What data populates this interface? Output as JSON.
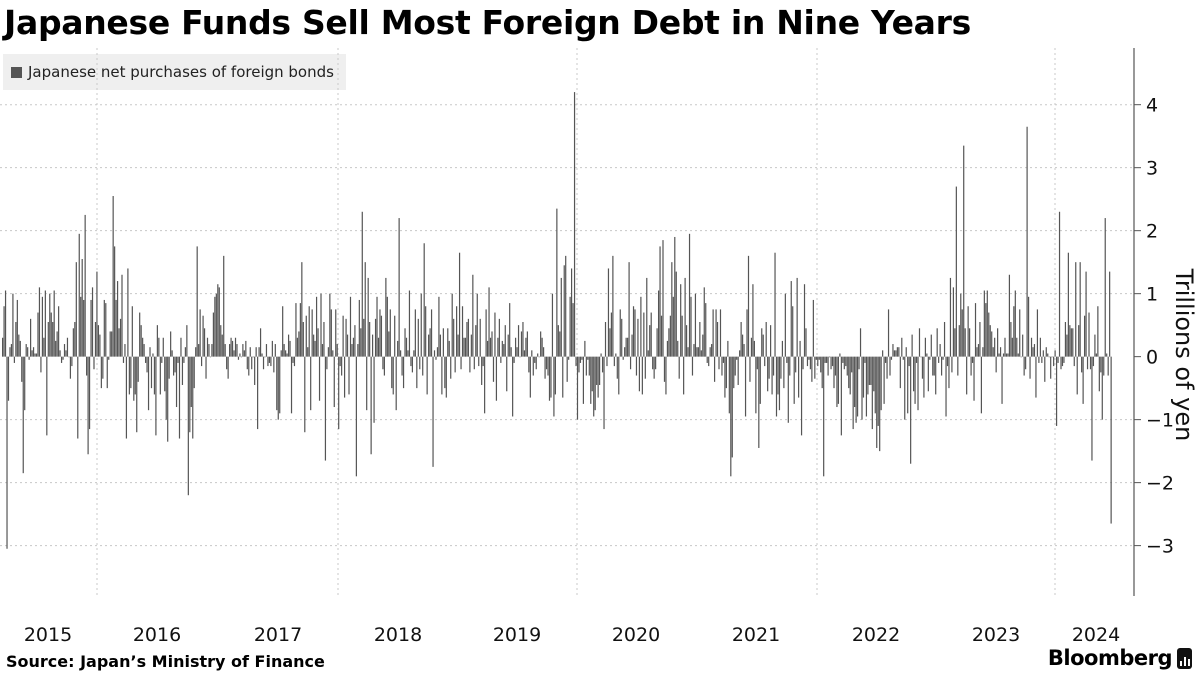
{
  "title": "Japanese Funds Sell Most Foreign Debt in Nine Years",
  "source": "Source: Japan’s Ministry of Finance",
  "brand": "Bloomberg",
  "colors": {
    "bar": "#555555",
    "grid": "#c8c8c8",
    "axis": "#555555",
    "legend_bg": "#efefef"
  },
  "chart_data": {
    "type": "bar",
    "frequency": "weekly",
    "grid": true,
    "legend_position": "top-left",
    "ylabel": "Trillions of yen",
    "ylim": [
      -3.8,
      4.9
    ],
    "y_ticks": [
      4,
      3,
      2,
      1,
      0,
      -1,
      -2,
      -3
    ],
    "x_year_labels": [
      "2015",
      "2016",
      "2017",
      "2018",
      "2019",
      "2020",
      "2021",
      "2022",
      "2023",
      "2024"
    ],
    "series": [
      {
        "name": "Japanese net purchases of foreign bonds",
        "values": [
          0.3,
          0.8,
          1.05,
          -3.05,
          -0.7,
          0.15,
          0.2,
          1.0,
          -0.1,
          0.55,
          0.9,
          0.35,
          0.25,
          -0.4,
          -1.85,
          -0.85,
          0.2,
          0.15,
          -0.05,
          0.6,
          0.1,
          0.15,
          0.05,
          0.05,
          0.7,
          1.1,
          -0.25,
          0.95,
          0.3,
          1.05,
          -1.25,
          0.55,
          1.0,
          0.7,
          0.55,
          1.05,
          0.25,
          0.4,
          0.8,
          0.1,
          -0.1,
          -0.05,
          0.2,
          0.1,
          0.3,
          0.0,
          -0.35,
          -0.15,
          0.45,
          0.55,
          1.5,
          -1.3,
          1.95,
          0.95,
          1.55,
          0.9,
          2.25,
          -0.3,
          -1.55,
          -1.15,
          0.9,
          1.1,
          -0.2,
          0.55,
          1.35,
          0.5,
          0.35,
          -0.5,
          -0.35,
          0.9,
          0.85,
          -0.5,
          -0.05,
          0.4,
          0.4,
          2.55,
          1.75,
          0.9,
          1.2,
          0.45,
          0.6,
          1.3,
          -0.1,
          0.2,
          -1.3,
          1.4,
          -0.6,
          -0.5,
          0.8,
          -0.7,
          -0.6,
          -1.2,
          -0.4,
          0.7,
          0.5,
          0.3,
          0.2,
          -0.1,
          -0.25,
          -0.85,
          0.15,
          -0.5,
          0.05,
          -0.6,
          -1.25,
          0.5,
          0.3,
          -0.6,
          -0.1,
          0.3,
          -0.55,
          -1.0,
          -1.35,
          -0.35,
          0.4,
          0.1,
          -0.3,
          -0.25,
          -0.8,
          -0.1,
          -1.3,
          0.3,
          -0.45,
          -0.1,
          0.15,
          0.5,
          -2.2,
          -1.2,
          -0.8,
          -1.3,
          -0.5,
          0.15,
          1.75,
          0.2,
          0.75,
          -0.15,
          0.65,
          0.45,
          -0.35,
          0.3,
          0.2,
          0.0,
          0.2,
          0.7,
          0.95,
          1.0,
          1.15,
          1.1,
          0.5,
          0.35,
          1.6,
          0.2,
          -0.2,
          -0.35,
          0.2,
          0.3,
          0.25,
          0.1,
          0.3,
          0.2,
          -0.05,
          0.05,
          0.0,
          0.2,
          0.1,
          0.25,
          -0.2,
          -0.3,
          0.15,
          -0.2,
          0.0,
          -0.45,
          0.15,
          -1.15,
          0.15,
          0.45,
          0.05,
          -0.2,
          0.0,
          0.2,
          -0.15,
          -0.1,
          -0.15,
          0.25,
          -0.25,
          0.2,
          -0.85,
          -1.0,
          -0.9,
          0.1,
          0.8,
          0.2,
          0.1,
          0.05,
          0.35,
          0.25,
          -0.9,
          -0.1,
          -0.15,
          0.85,
          0.3,
          0.4,
          0.85,
          1.5,
          0.55,
          -1.2,
          0.65,
          0.15,
          0.8,
          -0.85,
          0.75,
          0.35,
          0.25,
          0.95,
          0.45,
          -0.7,
          1.0,
          0.2,
          0.55,
          -1.65,
          -0.2,
          0.15,
          1.0,
          0.75,
          0.1,
          -0.8,
          0.75,
          0.2,
          -1.15,
          -0.15,
          -0.3,
          0.65,
          -0.65,
          0.6,
          0.35,
          -0.6,
          0.95,
          0.2,
          0.3,
          0.5,
          -1.9,
          0.2,
          0.9,
          0.45,
          2.3,
          0.6,
          1.5,
          -0.85,
          1.25,
          0.55,
          -1.55,
          0.35,
          -1.05,
          0.6,
          0.95,
          0.3,
          0.75,
          0.65,
          -0.2,
          -0.3,
          1.25,
          0.95,
          0.4,
          0.75,
          -0.5,
          -0.6,
          0.65,
          -0.85,
          0.25,
          2.2,
          0.1,
          -0.3,
          -0.5,
          0.45,
          0.3,
          0.1,
          1.05,
          -0.15,
          -0.25,
          0.1,
          0.75,
          -0.5,
          0.6,
          -0.2,
          1.0,
          -0.3,
          1.8,
          0.8,
          -0.6,
          0.35,
          0.45,
          0.75,
          -1.75,
          0.1,
          -0.05,
          0.15,
          0.95,
          0.35,
          -0.6,
          0.45,
          -0.5,
          -0.65,
          0.45,
          0.25,
          -0.35,
          1.0,
          0.6,
          -0.25,
          0.8,
          0.35,
          1.65,
          -0.2,
          0.8,
          0.3,
          0.3,
          0.55,
          0.6,
          -0.25,
          0.35,
          1.3,
          -0.2,
          0.5,
          1.0,
          -0.15,
          0.6,
          -0.45,
          -0.15,
          -0.9,
          0.75,
          0.25,
          1.1,
          0.3,
          0.4,
          -0.4,
          0.7,
          -0.7,
          0.3,
          0.6,
          -0.1,
          0.25,
          0.2,
          0.5,
          -0.55,
          0.35,
          0.85,
          0.15,
          -0.95,
          -0.1,
          0.3,
          0.15,
          0.5,
          0.0,
          0.4,
          0.55,
          0.1,
          0.3,
          0.4,
          -0.25,
          -0.65,
          0.1,
          -0.3,
          -0.1,
          -0.2,
          0.05,
          0.0,
          0.4,
          0.3,
          0.15,
          -0.35,
          -0.2,
          -0.3,
          -0.7,
          -0.65,
          1.0,
          -0.95,
          -0.6,
          2.35,
          0.5,
          0.4,
          1.25,
          -0.65,
          1.45,
          1.6,
          -0.4,
          -0.05,
          0.95,
          1.4,
          0.85,
          4.2,
          -0.15,
          -1.0,
          -0.25,
          -0.1,
          -0.05,
          -0.75,
          0.25,
          -0.3,
          -0.05,
          -0.3,
          -0.75,
          -0.55,
          -0.95,
          -0.85,
          -0.45,
          -0.65,
          -0.45,
          0.05,
          -0.25,
          -1.15,
          0.55,
          -0.15,
          1.4,
          0.45,
          0.7,
          1.6,
          -0.15,
          0.05,
          -0.35,
          -0.6,
          0.75,
          0.6,
          -0.05,
          0.15,
          0.3,
          0.3,
          1.5,
          -0.2,
          0.35,
          0.8,
          0.75,
          -0.3,
          0.6,
          -0.55,
          0.95,
          -0.6,
          0.7,
          -0.35,
          1.25,
          0.1,
          0.5,
          0.7,
          -0.2,
          -0.35,
          -0.2,
          0.45,
          1.05,
          1.75,
          0.65,
          1.85,
          -0.4,
          -0.6,
          0.25,
          0.45,
          0.65,
          1.5,
          0.95,
          1.9,
          1.35,
          0.25,
          -0.35,
          1.15,
          0.65,
          -0.6,
          1.25,
          0.5,
          0.15,
          1.95,
          0.95,
          -0.3,
          0.2,
          1.0,
          0.15,
          0.15,
          0.55,
          0.1,
          0.35,
          1.1,
          0.85,
          -0.1,
          -0.15,
          0.15,
          0.2,
          0.75,
          -0.4,
          0.75,
          0.55,
          -0.2,
          0.75,
          -0.3,
          -0.1,
          -0.65,
          -0.5,
          0.25,
          -0.9,
          -1.9,
          -1.6,
          -0.5,
          -0.3,
          -0.05,
          -0.45,
          0.1,
          0.55,
          0.35,
          0.2,
          -0.95,
          0.75,
          1.6,
          -0.4,
          0.3,
          1.15,
          0.25,
          -0.9,
          -0.2,
          -1.45,
          -0.75,
          0.45,
          0.35,
          -0.15,
          0.55,
          -0.55,
          -0.35,
          0.5,
          -0.6,
          -0.3,
          1.65,
          -0.95,
          -0.6,
          -0.85,
          -0.35,
          0.25,
          -0.5,
          1.0,
          -0.1,
          -1.05,
          -0.3,
          1.2,
          0.8,
          -0.75,
          -0.25,
          1.25,
          -0.65,
          0.25,
          -1.25,
          -0.2,
          1.15,
          0.45,
          -0.15,
          -0.05,
          -0.2,
          -0.4,
          0.9,
          -0.35,
          -0.05,
          -0.15,
          -0.05,
          -0.25,
          -0.5,
          -1.9,
          -0.1,
          -0.1,
          -0.3,
          0.0,
          -0.2,
          -0.15,
          -0.5,
          -0.3,
          -0.8,
          -0.75,
          0.05,
          -1.25,
          -0.1,
          -0.2,
          -0.15,
          -0.3,
          -0.5,
          -0.6,
          -0.25,
          -1.15,
          -0.8,
          -1.05,
          -0.95,
          -0.2,
          0.45,
          -1.0,
          -0.65,
          -0.1,
          -0.95,
          -0.6,
          -0.45,
          -0.45,
          -1.15,
          -0.55,
          -0.9,
          -1.45,
          -1.1,
          -1.5,
          -0.85,
          0.1,
          -0.75,
          -0.1,
          -0.35,
          0.75,
          -0.3,
          -0.05,
          0.2,
          0.1,
          0.1,
          0.15,
          0.15,
          -0.5,
          0.3,
          -0.05,
          -1.0,
          0.15,
          -0.9,
          -0.15,
          -1.7,
          0.35,
          -0.55,
          -0.75,
          -0.1,
          -0.85,
          0.45,
          0.0,
          -0.35,
          -0.65,
          0.3,
          0.05,
          -0.55,
          -0.05,
          0.35,
          -0.3,
          -0.3,
          -0.6,
          0.45,
          -0.1,
          0.2,
          -0.3,
          -0.05,
          0.55,
          -0.95,
          -0.15,
          -0.5,
          1.25,
          -0.25,
          1.1,
          0.45,
          2.7,
          -0.3,
          0.5,
          1.0,
          0.75,
          3.35,
          0.45,
          -0.6,
          0.8,
          0.45,
          -0.3,
          -0.1,
          -0.7,
          0.85,
          0.15,
          0.2,
          0.55,
          -0.9,
          0.15,
          1.05,
          0.85,
          1.05,
          0.7,
          0.5,
          0.4,
          0.15,
          0.3,
          -0.25,
          0.45,
          0.05,
          0.15,
          -0.75,
          0.05,
          0.3,
          0.05,
          0.05,
          1.3,
          0.55,
          0.3,
          0.8,
          1.05,
          0.3,
          0.05,
          0.75,
          0.0,
          0.35,
          -0.3,
          -0.2,
          3.65,
          0.95,
          -0.35,
          0.3,
          0.15,
          0.2,
          -0.65,
          0.75,
          -0.1,
          0.3,
          -0.1,
          0.1,
          -0.4,
          0.15,
          0.05,
          0.0,
          -0.35,
          0.0,
          -0.15,
          0.1,
          -1.1,
          -0.1,
          2.3,
          -0.2,
          -0.15,
          -0.1,
          0.55,
          0.35,
          1.65,
          0.5,
          0.45,
          0.45,
          -0.15,
          1.5,
          -0.6,
          0.5,
          1.5,
          -0.25,
          -0.75,
          0.65,
          1.35,
          -0.2,
          0.7,
          -0.2,
          -1.65,
          -0.15,
          0.35,
          0.05,
          0.8,
          -0.55,
          -0.25,
          -1.0,
          -0.3,
          2.2,
          0.05,
          -0.3,
          1.35,
          -2.65
        ]
      }
    ]
  }
}
